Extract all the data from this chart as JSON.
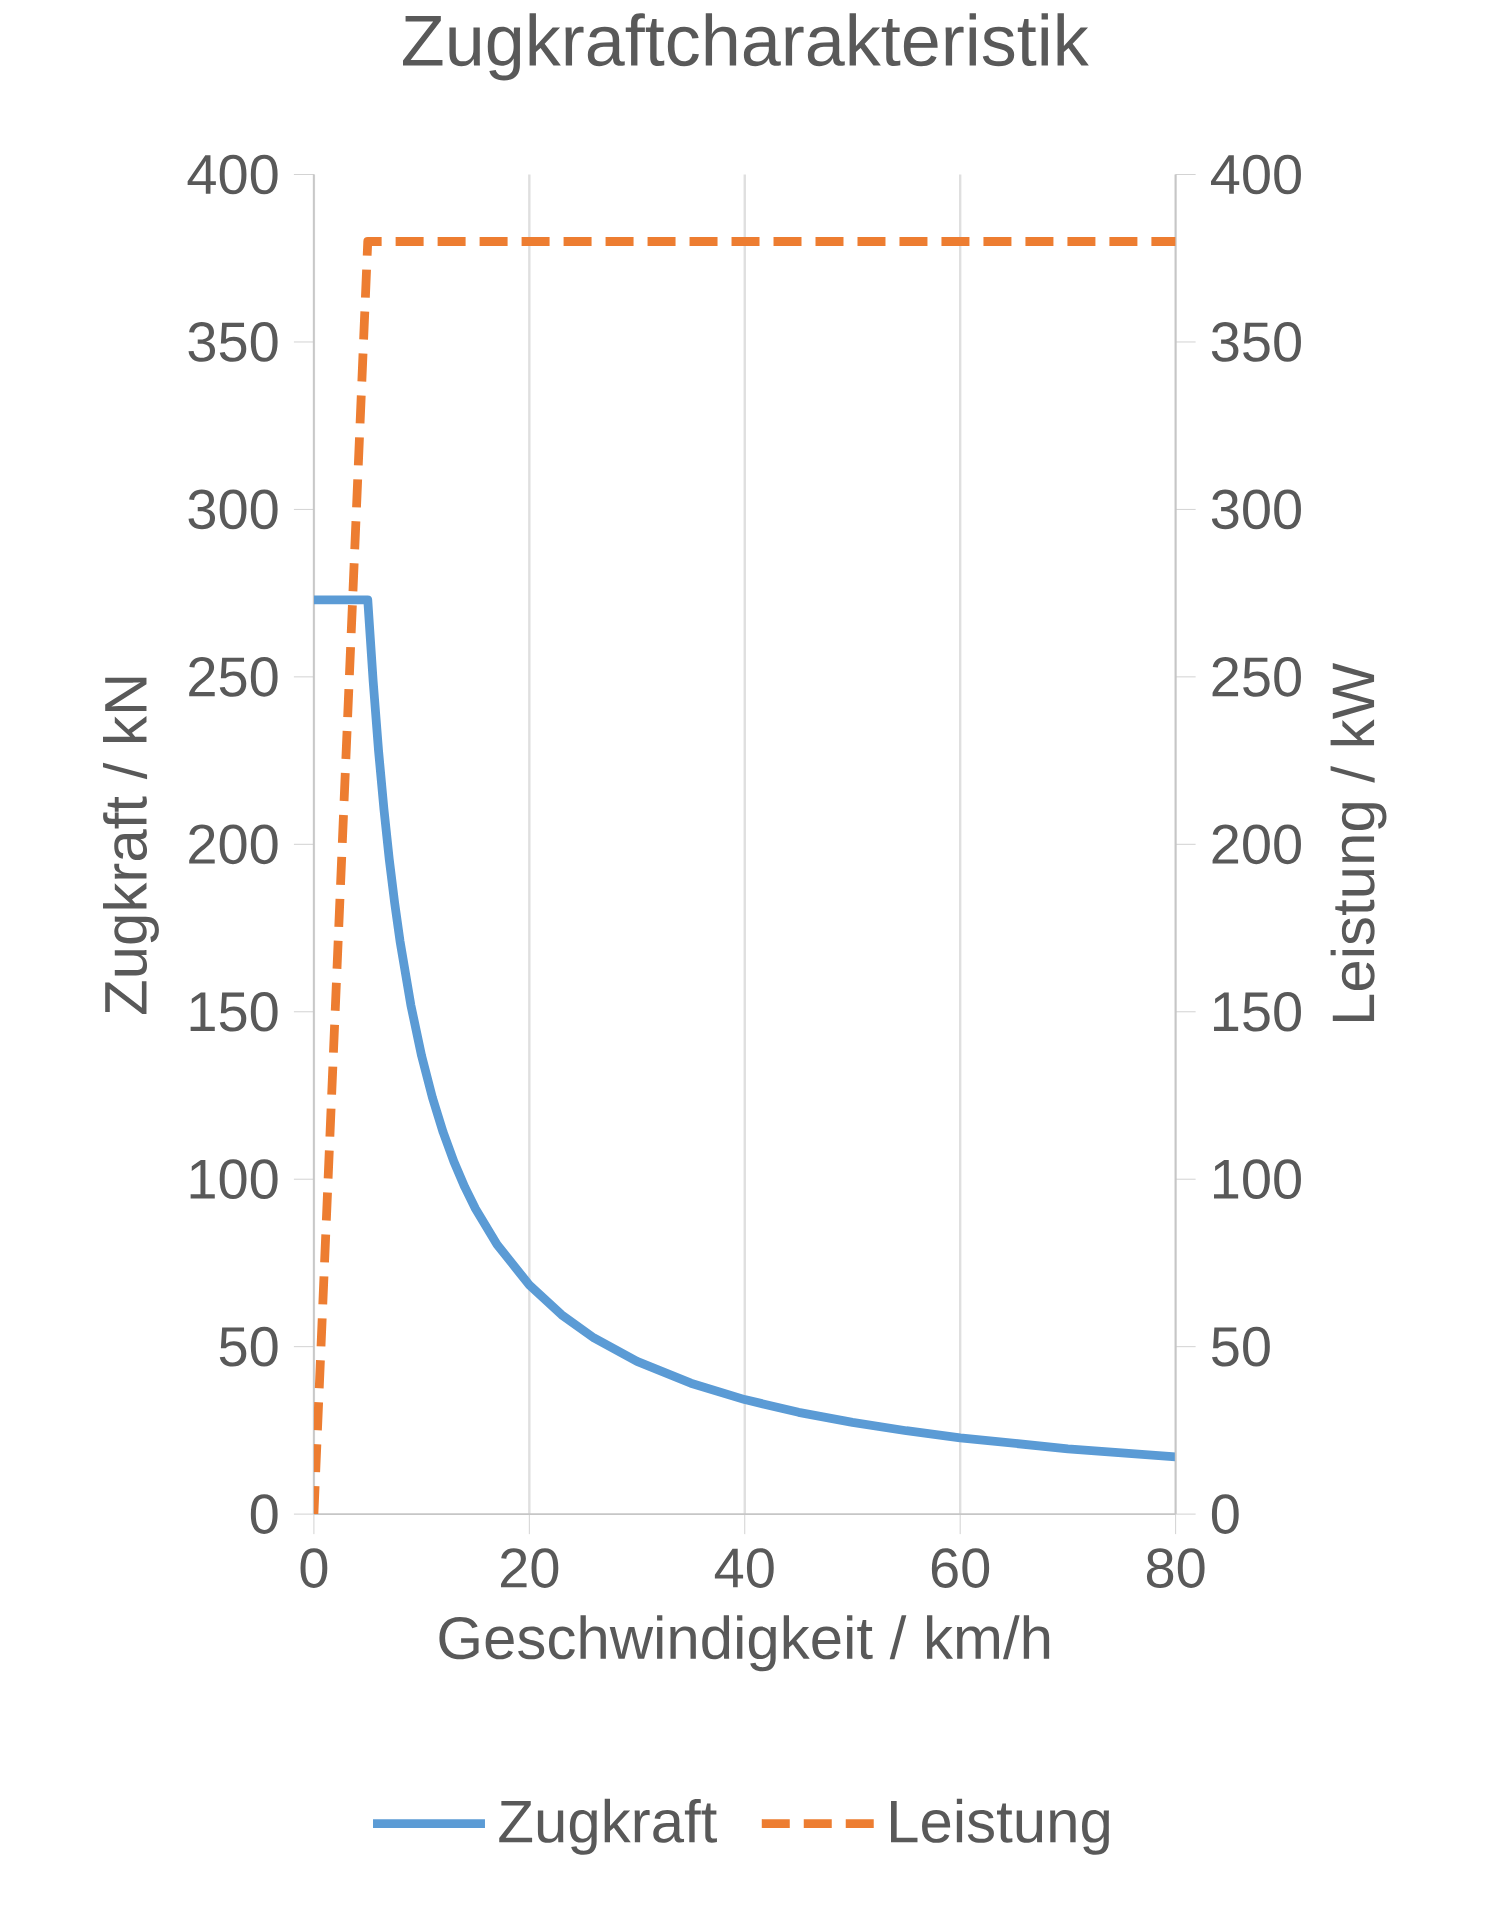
{
  "chart_data": {
    "type": "line",
    "title": "Zugkraftcharakteristik",
    "xlabel": "Geschwindigkeit / km/h",
    "ylabel": "Zugkraft / kN",
    "y2label": "Leistung / kW",
    "xlim": [
      0,
      80
    ],
    "xticks": [
      0,
      20,
      40,
      60,
      80
    ],
    "ylim": [
      0,
      400
    ],
    "yticks": [
      0,
      50,
      100,
      150,
      200,
      250,
      300,
      350,
      400
    ],
    "y2lim": [
      0,
      400
    ],
    "y2ticks": [
      0,
      50,
      100,
      150,
      200,
      250,
      300,
      350,
      400
    ],
    "grid": "x",
    "legend": "bottom",
    "marker": "none",
    "series": [
      {
        "name": "Zugkraft",
        "color": "#5b9bd5",
        "line_style": "solid",
        "x": [
          0,
          5,
          5.5,
          6,
          6.5,
          7,
          7.5,
          8,
          9,
          10,
          11,
          12,
          13,
          14,
          15,
          17,
          20,
          23,
          26,
          30,
          35,
          40,
          45,
          50,
          55,
          60,
          70,
          80
        ],
        "values": [
          273,
          273,
          248.7,
          228,
          210.5,
          195.4,
          182.4,
          171,
          152,
          136.8,
          124.4,
          114,
          105.2,
          97.7,
          91.2,
          80.5,
          68.4,
          59.5,
          52.6,
          45.6,
          39.1,
          34.2,
          30.4,
          27.4,
          24.9,
          22.8,
          19.5,
          17.1
        ]
      },
      {
        "name": "Leistung",
        "color": "#ed7d31",
        "line_style": "dashed",
        "axis": "y2",
        "x": [
          0,
          5,
          80
        ],
        "values": [
          0,
          380,
          380
        ]
      }
    ]
  }
}
